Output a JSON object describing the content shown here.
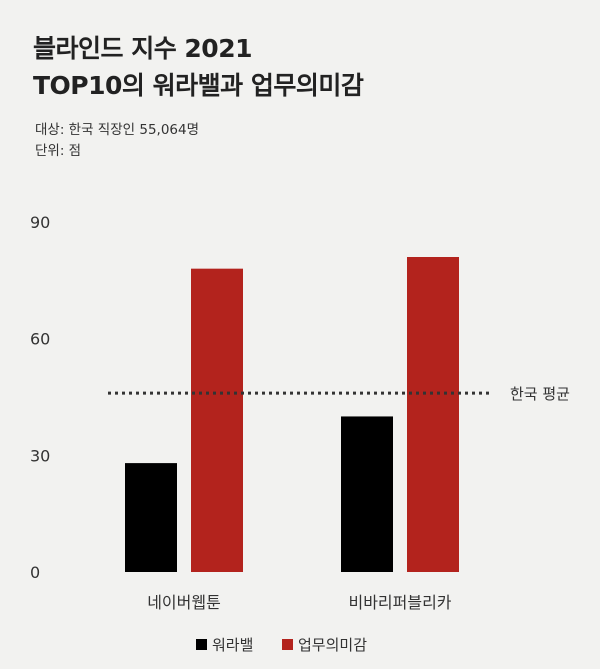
{
  "title_lines": [
    "블라인드 지수 2021",
    "TOP10의 워라밸과 업무의미감"
  ],
  "subtitle_lines": [
    "대상: 한국 직장인 55,064명",
    "단위: 점"
  ],
  "colors": {
    "worklife": "#000000",
    "meaning": "#b3231d",
    "avg_line": "#333333"
  },
  "chart_data": {
    "type": "bar",
    "categories": [
      "네이버웹툰",
      "비바리퍼블리카"
    ],
    "series": [
      {
        "name": "워라밸",
        "values": [
          28,
          40
        ]
      },
      {
        "name": "업무의미감",
        "values": [
          78,
          81
        ]
      }
    ],
    "ylim": [
      0,
      90
    ],
    "yticks": [
      0,
      30,
      60,
      90
    ],
    "reference_line": {
      "label": "한국 평균",
      "value": 46
    },
    "legend_position": "bottom-center",
    "grid": false
  }
}
